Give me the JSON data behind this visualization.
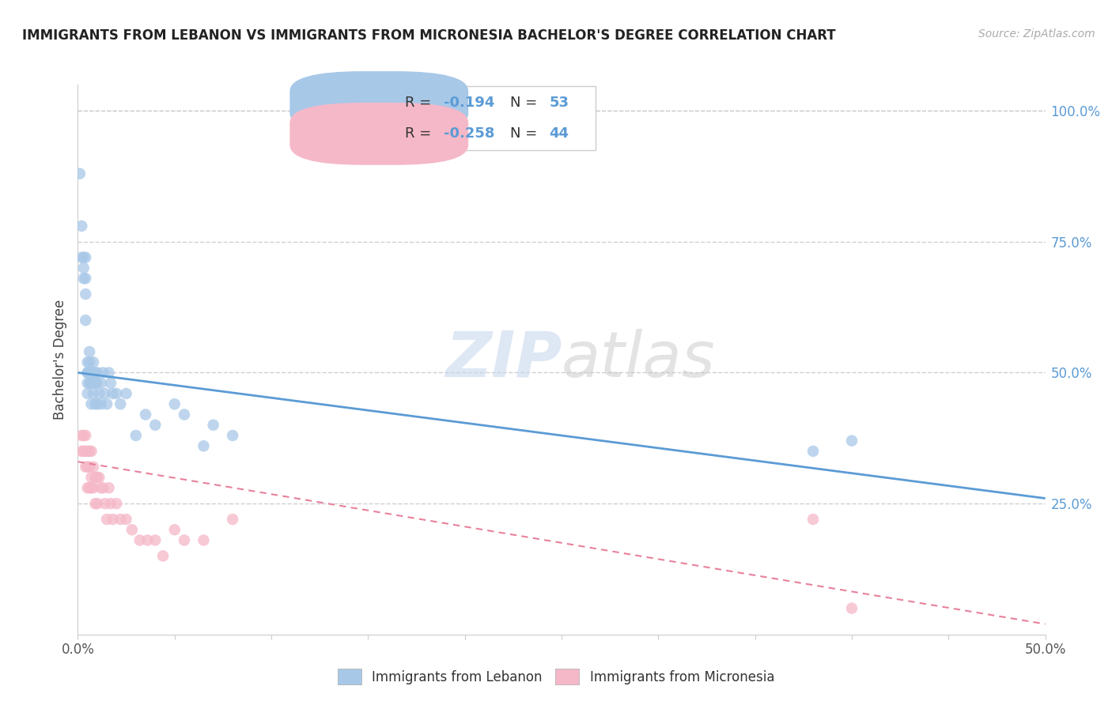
{
  "title": "IMMIGRANTS FROM LEBANON VS IMMIGRANTS FROM MICRONESIA BACHELOR'S DEGREE CORRELATION CHART",
  "source": "Source: ZipAtlas.com",
  "ylabel": "Bachelor's Degree",
  "xlim": [
    0.0,
    0.5
  ],
  "ylim": [
    0.0,
    1.05
  ],
  "xtick_vals": [
    0.0,
    0.05,
    0.1,
    0.15,
    0.2,
    0.25,
    0.3,
    0.35,
    0.4,
    0.45,
    0.5
  ],
  "xtick_labels_show": {
    "0.0": "0.0%",
    "0.5": "50.0%"
  },
  "ytick_vals_right": [
    0.25,
    0.5,
    0.75,
    1.0
  ],
  "ytick_labels_right": [
    "25.0%",
    "50.0%",
    "75.0%",
    "100.0%"
  ],
  "legend_blue_r": "-0.194",
  "legend_blue_n": "53",
  "legend_pink_r": "-0.258",
  "legend_pink_n": "44",
  "blue_color": "#a8c8e8",
  "pink_color": "#f5b8c8",
  "blue_line_color": "#5b9bd5",
  "pink_line_color": "#e8819a",
  "watermark_zip": "ZIP",
  "watermark_atlas": "atlas",
  "background_color": "#ffffff",
  "grid_color": "#d0d0d0",
  "blue_scatter_x": [
    0.001,
    0.002,
    0.002,
    0.003,
    0.003,
    0.003,
    0.004,
    0.004,
    0.004,
    0.004,
    0.005,
    0.005,
    0.005,
    0.005,
    0.005,
    0.006,
    0.006,
    0.006,
    0.006,
    0.007,
    0.007,
    0.007,
    0.008,
    0.008,
    0.008,
    0.009,
    0.009,
    0.009,
    0.01,
    0.01,
    0.01,
    0.011,
    0.012,
    0.012,
    0.013,
    0.014,
    0.015,
    0.016,
    0.017,
    0.018,
    0.02,
    0.022,
    0.025,
    0.03,
    0.035,
    0.04,
    0.05,
    0.055,
    0.065,
    0.07,
    0.08,
    0.38,
    0.4
  ],
  "blue_scatter_y": [
    0.88,
    0.72,
    0.78,
    0.7,
    0.72,
    0.68,
    0.65,
    0.68,
    0.72,
    0.6,
    0.5,
    0.52,
    0.48,
    0.5,
    0.46,
    0.5,
    0.48,
    0.52,
    0.54,
    0.5,
    0.48,
    0.44,
    0.5,
    0.52,
    0.46,
    0.5,
    0.48,
    0.44,
    0.5,
    0.48,
    0.44,
    0.46,
    0.48,
    0.44,
    0.5,
    0.46,
    0.44,
    0.5,
    0.48,
    0.46,
    0.46,
    0.44,
    0.46,
    0.38,
    0.42,
    0.4,
    0.44,
    0.42,
    0.36,
    0.4,
    0.38,
    0.35,
    0.37
  ],
  "pink_scatter_x": [
    0.002,
    0.002,
    0.003,
    0.003,
    0.004,
    0.004,
    0.004,
    0.005,
    0.005,
    0.005,
    0.006,
    0.006,
    0.006,
    0.007,
    0.007,
    0.007,
    0.008,
    0.008,
    0.009,
    0.009,
    0.01,
    0.01,
    0.011,
    0.012,
    0.013,
    0.014,
    0.015,
    0.016,
    0.017,
    0.018,
    0.02,
    0.022,
    0.025,
    0.028,
    0.032,
    0.036,
    0.04,
    0.044,
    0.05,
    0.055,
    0.065,
    0.08,
    0.38,
    0.4
  ],
  "pink_scatter_y": [
    0.38,
    0.35,
    0.38,
    0.35,
    0.35,
    0.32,
    0.38,
    0.32,
    0.28,
    0.35,
    0.32,
    0.28,
    0.35,
    0.3,
    0.35,
    0.28,
    0.32,
    0.28,
    0.3,
    0.25,
    0.3,
    0.25,
    0.3,
    0.28,
    0.28,
    0.25,
    0.22,
    0.28,
    0.25,
    0.22,
    0.25,
    0.22,
    0.22,
    0.2,
    0.18,
    0.18,
    0.18,
    0.15,
    0.2,
    0.18,
    0.18,
    0.22,
    0.22,
    0.05
  ],
  "blue_trend_x": [
    0.0,
    0.5
  ],
  "blue_trend_y": [
    0.5,
    0.26
  ],
  "pink_trend_x": [
    0.0,
    0.5
  ],
  "pink_trend_y": [
    0.33,
    0.02
  ],
  "bottom_legend_blue": "Immigrants from Lebanon",
  "bottom_legend_pink": "Immigrants from Micronesia"
}
